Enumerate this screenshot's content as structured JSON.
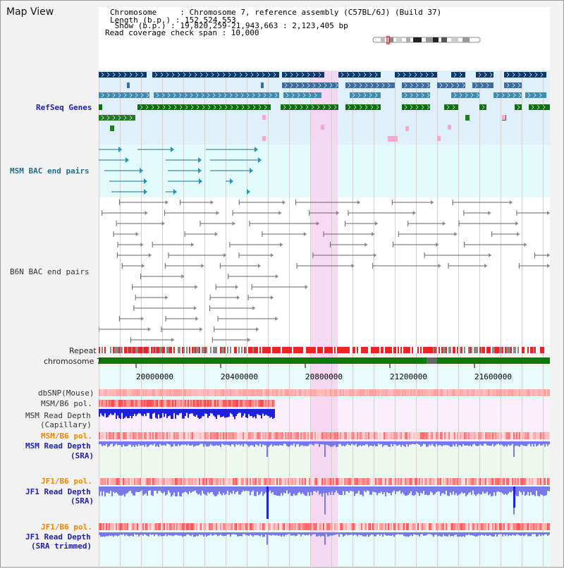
{
  "title": "Map View",
  "info": {
    "lines": [
      "Chromosome     : Chromosome 7, reference assembly (C57BL/6J) (Build 37)",
      "Length (b.p.) : 152,524,553",
      " Show (b.p.) : 19,820,259-21,943,663 : 2,123,405 bp",
      "Read coverage check span : 10,000"
    ]
  },
  "tracks": {
    "refseq": "RefSeq Genes",
    "msm_bac": "MSM BAC end pairs",
    "b6n_bac": "B6N BAC end pairs",
    "repeat": "Repeat",
    "chromosome": "chromosome 7",
    "dbsnp": "dbSNP(Mouse)",
    "msm_b6_pol_1": "MSM/B6 pol.",
    "msm_read_depth_cap_1": "MSM Read Depth",
    "msm_read_depth_cap_2": "(Capillary)",
    "msm_b6_pol_2": "MSM/B6 pol.",
    "msm_read_depth_sra_1": "MSM Read Depth",
    "msm_read_depth_sra_2": "(SRA)",
    "jf1_b6_pol_1": "JF1/B6 pol.",
    "jf1_read_depth_sra_1": "JF1 Read Depth",
    "jf1_read_depth_sra_2": "(SRA)",
    "jf1_b6_pol_2": "JF1/B6 pol.",
    "jf1_read_depth_trim_1": "JF1 Read Depth",
    "jf1_read_depth_trim_2": "(SRA trimmed)"
  },
  "axis": {
    "ticks": [
      "20000000",
      "20400000",
      "20800000",
      "21200000",
      "21600000"
    ]
  },
  "colors": {
    "highlight": "#f7d2f1",
    "refseq_bg": "#dff0fa",
    "msm_bg": "#e3fafa",
    "chromosome": "#0a7a0a",
    "repeat_red": "#ee2222",
    "depth_blue": "#7777ee",
    "depth_dark": "#2222dd"
  }
}
